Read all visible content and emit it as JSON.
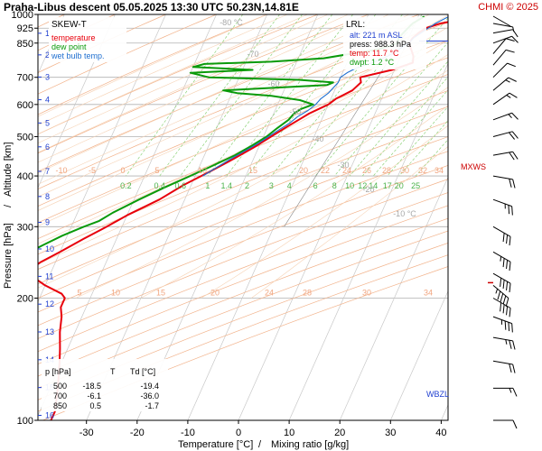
{
  "header": {
    "title": "Praha-Libus   descent   05.05.2025 13:30 UTC   50.23N,14.81E",
    "brand": "CHMI © 2025"
  },
  "legend": {
    "title": "SKEW-T",
    "items": [
      {
        "label": "temperature",
        "color": "#e8000b"
      },
      {
        "label": "dew point",
        "color": "#0a9a0a"
      },
      {
        "label": "wet bulb temp.",
        "color": "#1f6fd0"
      }
    ]
  },
  "lrl": {
    "title": "LRL:",
    "alt": "alt: 221 m ASL",
    "press": "press: 988.3 hPa",
    "temp": "temp: 11.7 °C",
    "dwpt": "dwpt: 1.2 °C"
  },
  "levels_table": {
    "headers": [
      "p [hPa]",
      "T",
      "Td [°C]"
    ],
    "rows": [
      [
        "500",
        "-18.5",
        "-19.4"
      ],
      [
        "700",
        "-6.1",
        "-36.0"
      ],
      [
        "850",
        "0.5",
        "-1.7"
      ]
    ]
  },
  "markers": {
    "mxws": "MXWS",
    "wbzl": "WBZL"
  },
  "chart_data": {
    "type": "line",
    "xlabel": "Temperature [°C]",
    "x2label": "Mixing ratio [g/kg]",
    "ylabel": "Pressure [hPa]",
    "y2label": "Altitude [km]",
    "xlim": [
      -35,
      45
    ],
    "ylim": [
      1000,
      100
    ],
    "x_ticks": [
      -30,
      -20,
      -10,
      0,
      10,
      20,
      30,
      40
    ],
    "pressure_ticks": [
      100,
      200,
      300,
      400,
      500,
      600,
      700,
      850,
      925,
      1000
    ],
    "altitude_ticks_km": [
      1,
      2,
      3,
      4,
      5,
      6,
      7,
      8,
      9,
      10,
      11,
      12,
      13,
      14,
      15,
      16
    ],
    "grid": true,
    "mixing_ratio_labels": [
      "0.2",
      "0.4",
      "0.6",
      "1",
      "1.4",
      "2",
      "3",
      "4",
      "6",
      "8",
      "10",
      "12",
      "14",
      "17",
      "20",
      "25"
    ],
    "dry_adiabat_labels": [
      "-80 °C",
      "-70",
      "-60",
      "-50",
      "-40",
      "-30",
      "-20",
      "-10 °C"
    ],
    "moist_label_row_200": [
      "5",
      "10",
      "15",
      "20",
      "24",
      "28",
      "30",
      "34"
    ],
    "moist_label_row_400": [
      "-10",
      "-5",
      "0",
      "5",
      "10",
      "15",
      "20",
      "22",
      "24",
      "26",
      "28",
      "30",
      "32",
      "34"
    ],
    "series": [
      {
        "name": "temperature",
        "color": "#e8000b",
        "points": [
          [
            988,
            11.7
          ],
          [
            970,
            8.5
          ],
          [
            950,
            5
          ],
          [
            925,
            2.5
          ],
          [
            900,
            1.5
          ],
          [
            875,
            0.8
          ],
          [
            850,
            0.5
          ],
          [
            820,
            1.5
          ],
          [
            790,
            2.5
          ],
          [
            760,
            3
          ],
          [
            730,
            -0.5
          ],
          [
            700,
            -6.1
          ],
          [
            680,
            -5.5
          ],
          [
            650,
            -6.5
          ],
          [
            620,
            -9
          ],
          [
            600,
            -10
          ],
          [
            585,
            -11.5
          ],
          [
            570,
            -13
          ],
          [
            550,
            -14.5
          ],
          [
            525,
            -16.5
          ],
          [
            500,
            -18.5
          ],
          [
            470,
            -21
          ],
          [
            440,
            -24
          ],
          [
            410,
            -27.5
          ],
          [
            380,
            -31.5
          ],
          [
            350,
            -35
          ],
          [
            320,
            -40
          ],
          [
            300,
            -43
          ],
          [
            280,
            -46.5
          ],
          [
            260,
            -50
          ],
          [
            245,
            -53
          ],
          [
            230,
            -55
          ],
          [
            225,
            -53
          ],
          [
            215,
            -50
          ],
          [
            205,
            -46
          ],
          [
            200,
            -45
          ],
          [
            190,
            -45
          ],
          [
            180,
            -44
          ],
          [
            165,
            -43
          ],
          [
            150,
            -41.5
          ],
          [
            140,
            -40.5
          ],
          [
            125,
            -39
          ],
          [
            115,
            -38
          ],
          [
            105,
            -37
          ],
          [
            100,
            -37
          ]
        ]
      },
      {
        "name": "dew point",
        "color": "#0a9a0a",
        "points": [
          [
            988,
            1.2
          ],
          [
            950,
            -0.5
          ],
          [
            925,
            -1
          ],
          [
            900,
            -1.5
          ],
          [
            875,
            -2
          ],
          [
            850,
            -1.7
          ],
          [
            820,
            -5
          ],
          [
            800,
            -10
          ],
          [
            780,
            -15
          ],
          [
            765,
            -25
          ],
          [
            755,
            -38
          ],
          [
            742,
            -40
          ],
          [
            730,
            -28
          ],
          [
            718,
            -40
          ],
          [
            700,
            -36
          ],
          [
            690,
            -18
          ],
          [
            680,
            -11
          ],
          [
            670,
            -12
          ],
          [
            660,
            -22
          ],
          [
            650,
            -32
          ],
          [
            640,
            -29
          ],
          [
            630,
            -22
          ],
          [
            615,
            -16
          ],
          [
            600,
            -13
          ],
          [
            585,
            -15
          ],
          [
            570,
            -16
          ],
          [
            550,
            -16.5
          ],
          [
            525,
            -18
          ],
          [
            500,
            -19.4
          ],
          [
            475,
            -21.5
          ],
          [
            450,
            -24
          ],
          [
            420,
            -28
          ],
          [
            400,
            -31
          ],
          [
            375,
            -35
          ],
          [
            350,
            -39
          ],
          [
            325,
            -43
          ],
          [
            310,
            -45
          ],
          [
            300,
            -47.5
          ],
          [
            285,
            -51
          ],
          [
            270,
            -54
          ],
          [
            255,
            -57
          ],
          [
            240,
            -60
          ],
          [
            230,
            -62
          ],
          [
            220,
            -65
          ],
          [
            210,
            -69
          ],
          [
            200,
            -72
          ],
          [
            195,
            -76
          ],
          [
            180,
            -77
          ],
          [
            165,
            -78
          ],
          [
            150,
            -79
          ],
          [
            140,
            -81
          ],
          [
            130,
            -82
          ],
          [
            125,
            -82
          ],
          [
            115,
            -80
          ],
          [
            105,
            -79
          ],
          [
            100,
            -79
          ]
        ]
      },
      {
        "name": "wet bulb temp.",
        "color": "#1f6fd0",
        "points": [
          [
            988,
            6
          ],
          [
            950,
            4
          ],
          [
            925,
            3
          ],
          [
            900,
            2
          ],
          [
            875,
            1
          ],
          [
            850,
            0.5
          ],
          [
            820,
            -1
          ],
          [
            790,
            -2.5
          ],
          [
            760,
            -5
          ],
          [
            740,
            -7.5
          ],
          [
            720,
            -9
          ],
          [
            700,
            -10
          ],
          [
            680,
            -10
          ],
          [
            660,
            -10.5
          ],
          [
            640,
            -11
          ],
          [
            620,
            -12
          ],
          [
            600,
            -12.5
          ],
          [
            580,
            -13.5
          ],
          [
            560,
            -15
          ],
          [
            540,
            -16
          ],
          [
            520,
            -17.5
          ],
          [
            500,
            -19
          ],
          [
            480,
            -20.5
          ],
          [
            460,
            -22.5
          ],
          [
            440,
            -24.5
          ],
          [
            420,
            -26.5
          ],
          [
            400,
            -28.5
          ]
        ]
      }
    ],
    "wind_barbs": [
      {
        "p": 990,
        "dir": 120,
        "kt": 2
      },
      {
        "p": 950,
        "dir": 100,
        "kt": 5
      },
      {
        "p": 900,
        "dir": 80,
        "kt": 10
      },
      {
        "p": 850,
        "dir": 70,
        "kt": 10
      },
      {
        "p": 800,
        "dir": 40,
        "kt": 10
      },
      {
        "p": 750,
        "dir": 40,
        "kt": 10
      },
      {
        "p": 700,
        "dir": 45,
        "kt": 10
      },
      {
        "p": 650,
        "dir": 50,
        "kt": 15
      },
      {
        "p": 600,
        "dir": 55,
        "kt": 15
      },
      {
        "p": 550,
        "dir": 70,
        "kt": 15
      },
      {
        "p": 500,
        "dir": 75,
        "kt": 20
      },
      {
        "p": 450,
        "dir": 80,
        "kt": 20
      },
      {
        "p": 400,
        "dir": 100,
        "kt": 20
      },
      {
        "p": 350,
        "dir": 110,
        "kt": 25
      },
      {
        "p": 300,
        "dir": 120,
        "kt": 30
      },
      {
        "p": 260,
        "dir": 120,
        "kt": 35
      },
      {
        "p": 230,
        "dir": 120,
        "kt": 40
      },
      {
        "p": 215,
        "dir": 130,
        "kt": 45
      },
      {
        "p": 200,
        "dir": 120,
        "kt": 40
      },
      {
        "p": 180,
        "dir": 110,
        "kt": 35
      },
      {
        "p": 160,
        "dir": 100,
        "kt": 25
      },
      {
        "p": 140,
        "dir": 100,
        "kt": 20
      },
      {
        "p": 120,
        "dir": 90,
        "kt": 15
      },
      {
        "p": 100,
        "dir": 90,
        "kt": 10
      }
    ],
    "mxws_pressure": 215,
    "wbzl_pressure": 860
  }
}
